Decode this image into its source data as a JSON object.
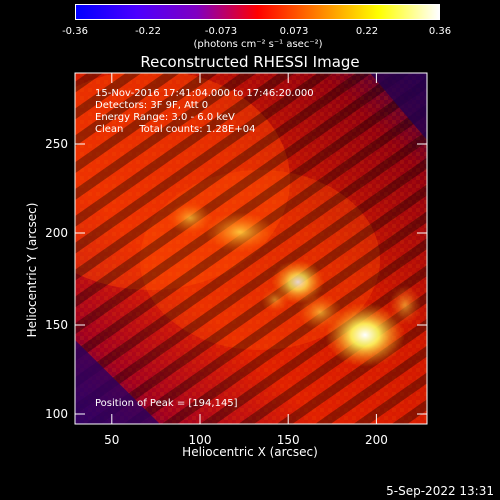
{
  "colorbar": {
    "tick_labels": [
      "-0.36",
      "-0.22",
      "-0.073",
      "0.073",
      "0.22",
      "0.36"
    ],
    "units_label": "(photons cm⁻² s⁻¹ asec⁻²)",
    "colors": [
      "#0000ff",
      "#4b00ff",
      "#8000c0",
      "#ff0000",
      "#ff8000",
      "#ffff00",
      "#ffffff"
    ]
  },
  "title": "Reconstructed RHESSI Image",
  "annotations": {
    "time_range": "15-Nov-2016 17:41:04.000 to 17:46:20.000",
    "detectors": "Detectors: 3F 9F, Att 0",
    "energy_range": "Energy Range: 3.0 - 6.0 keV",
    "method_counts": "Clean     Total counts: 1.28E+04",
    "peak": "Position of Peak = [194,145]"
  },
  "axes": {
    "xlabel": "Heliocentric X (arcsec)",
    "ylabel": "Heliocentric Y (arcsec)",
    "xticks": [
      "50",
      "100",
      "150",
      "200"
    ],
    "yticks": [
      "100",
      "150",
      "200",
      "250"
    ]
  },
  "timestamp": "5-Sep-2022 13:31"
}
